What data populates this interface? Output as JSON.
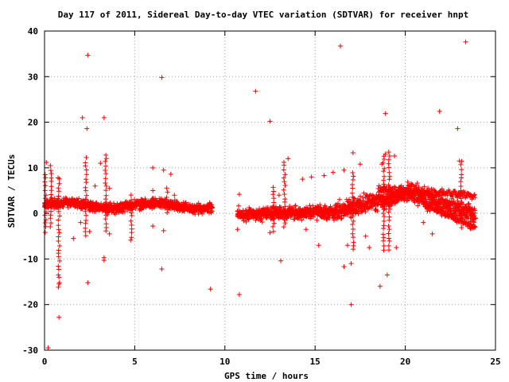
{
  "chart_data": {
    "type": "scatter",
    "title": "Day 117 of 2011, Sidereal Day-to-day VTEC variation (SDTVAR) for receiver hnpt",
    "xlabel": "GPS time / hours",
    "ylabel": "SDTVAR / TECUs",
    "xlim": [
      0,
      25
    ],
    "ylim": [
      -30,
      40
    ],
    "xticks": [
      0,
      5,
      10,
      15,
      20,
      25
    ],
    "yticks": [
      -30,
      -20,
      -10,
      0,
      10,
      20,
      30,
      40
    ],
    "grid": true,
    "marker": "+",
    "color": "#ff0000",
    "outliers": [
      [
        0.2,
        -29.5
      ],
      [
        0.1,
        11.2
      ],
      [
        0.75,
        7.8
      ],
      [
        0.8,
        -15.5
      ],
      [
        0.8,
        -22.8
      ],
      [
        2.1,
        21.0
      ],
      [
        2.35,
        18.6
      ],
      [
        2.4,
        34.7
      ],
      [
        2.4,
        -15.2
      ],
      [
        3.3,
        21.0
      ],
      [
        3.1,
        11.0
      ],
      [
        3.4,
        12.8
      ],
      [
        3.3,
        -9.7
      ],
      [
        3.3,
        -10.3
      ],
      [
        3.6,
        -4.5
      ],
      [
        1.6,
        -5.5
      ],
      [
        2.0,
        -2.0
      ],
      [
        2.5,
        -4.0
      ],
      [
        2.8,
        6.0
      ],
      [
        3.6,
        5.5
      ],
      [
        6.0,
        10.0
      ],
      [
        6.0,
        -2.8
      ],
      [
        6.0,
        5.0
      ],
      [
        6.5,
        29.8
      ],
      [
        6.5,
        -12.2
      ],
      [
        6.6,
        -3.8
      ],
      [
        6.6,
        9.5
      ],
      [
        7.0,
        8.6
      ],
      [
        7.2,
        4.0
      ],
      [
        9.2,
        -16.6
      ],
      [
        10.8,
        -17.8
      ],
      [
        10.7,
        -3.5
      ],
      [
        10.8,
        4.2
      ],
      [
        10.7,
        0.5
      ],
      [
        11.7,
        26.8
      ],
      [
        12.5,
        20.2
      ],
      [
        12.5,
        -4.2
      ],
      [
        13.0,
        4.0
      ],
      [
        13.1,
        -10.4
      ],
      [
        13.5,
        12.0
      ],
      [
        14.3,
        7.5
      ],
      [
        14.5,
        -3.5
      ],
      [
        14.8,
        8.0
      ],
      [
        15.2,
        -7.0
      ],
      [
        15.5,
        8.3
      ],
      [
        16.0,
        9.0
      ],
      [
        16.4,
        36.7
      ],
      [
        16.6,
        9.5
      ],
      [
        16.6,
        -11.7
      ],
      [
        16.8,
        -7.0
      ],
      [
        17.0,
        -20.0
      ],
      [
        17.1,
        13.3
      ],
      [
        17.0,
        -11.0
      ],
      [
        17.5,
        10.8
      ],
      [
        17.8,
        -5.0
      ],
      [
        18.0,
        -7.5
      ],
      [
        18.6,
        -16.0
      ],
      [
        18.7,
        10.8
      ],
      [
        18.9,
        21.9
      ],
      [
        19.0,
        -13.5
      ],
      [
        18.9,
        13.0
      ],
      [
        19.4,
        12.6
      ],
      [
        19.5,
        -7.5
      ],
      [
        20.2,
        5.0
      ],
      [
        21.0,
        -2.0
      ],
      [
        21.5,
        -4.5
      ],
      [
        21.9,
        22.4
      ],
      [
        22.9,
        18.6
      ],
      [
        23.0,
        11.5
      ],
      [
        23.35,
        37.6
      ],
      [
        23.2,
        2.0
      ],
      [
        23.6,
        4.0
      ]
    ]
  }
}
